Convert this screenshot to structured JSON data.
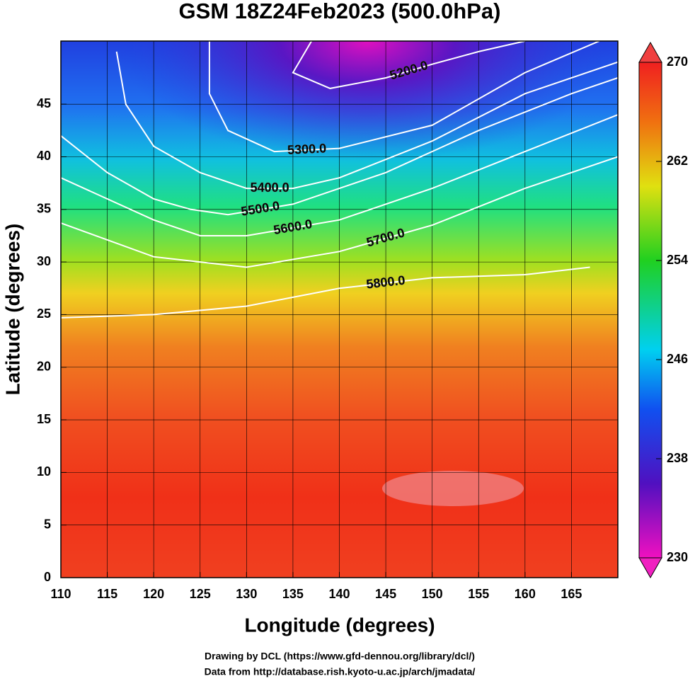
{
  "chart_data": {
    "type": "contour",
    "title": "GSM 18Z24Feb2023 (500.0hPa)",
    "x_label": "Longitude (degrees)",
    "y_label": "Latitude  (degrees)",
    "xlim": [
      110,
      170
    ],
    "ylim": [
      0,
      51
    ],
    "xticks": [
      110,
      115,
      120,
      125,
      130,
      135,
      140,
      145,
      150,
      155,
      160,
      165
    ],
    "yticks": [
      0,
      5,
      10,
      15,
      20,
      25,
      30,
      35,
      40,
      45
    ],
    "grid": true,
    "colorbar_lim": [
      230,
      270
    ],
    "colorbar_ticks": [
      230,
      238,
      246,
      254,
      262,
      270
    ],
    "contour_color": "#ffffff",
    "contours": [
      {
        "level": {
          "value": 5200,
          "label": "5200.0"
        },
        "lon": [
          137,
          135,
          139,
          145,
          150,
          155,
          160
        ],
        "lat": [
          51,
          48,
          46.5,
          47.5,
          48.8,
          50,
          51
        ]
      },
      {
        "level": {
          "value": 5300,
          "label": "5300.0"
        },
        "lon": [
          126,
          126,
          128,
          133,
          140,
          150,
          160,
          168
        ],
        "lat": [
          51,
          46,
          42.5,
          40.5,
          40.8,
          43,
          48,
          51
        ]
      },
      {
        "level": {
          "value": 5400,
          "label": "5400.0"
        },
        "lon": [
          116,
          117,
          120,
          125,
          130,
          135,
          140,
          150,
          160,
          170
        ],
        "lat": [
          50,
          45,
          41,
          38.5,
          37,
          37,
          38,
          41.5,
          46,
          49
        ]
      },
      {
        "level": {
          "value": 5500,
          "label": "5500.0"
        },
        "lon": [
          110,
          115,
          120,
          124,
          128,
          135,
          145,
          155,
          165,
          170
        ],
        "lat": [
          42,
          38.5,
          36,
          35,
          34.5,
          35.5,
          38.5,
          42.5,
          46,
          47.5
        ]
      },
      {
        "level": {
          "value": 5600,
          "label": "5600.0"
        },
        "lon": [
          110,
          120,
          125,
          130,
          140,
          150,
          160,
          170
        ],
        "lat": [
          38,
          34,
          32.5,
          32.5,
          34,
          37,
          40.5,
          44
        ]
      },
      {
        "level": {
          "value": 5700,
          "label": "5700.0"
        },
        "lon": [
          110,
          120,
          130,
          140,
          150,
          160,
          170
        ],
        "lat": [
          33.7,
          30.5,
          29.5,
          31,
          33.5,
          37,
          40
        ]
      },
      {
        "level": {
          "value": 5800,
          "label": "5800.0"
        },
        "lon": [
          110,
          120,
          130,
          140,
          150,
          160,
          167
        ],
        "lat": [
          24.7,
          25,
          25.8,
          27.5,
          28.5,
          28.8,
          29.5
        ]
      }
    ],
    "credits": [
      "Drawing by DCL (https://www.gfd-dennou.org/library/dcl/)",
      "Data from http://database.rish.kyoto-u.ac.jp/arch/jmadata/"
    ]
  }
}
